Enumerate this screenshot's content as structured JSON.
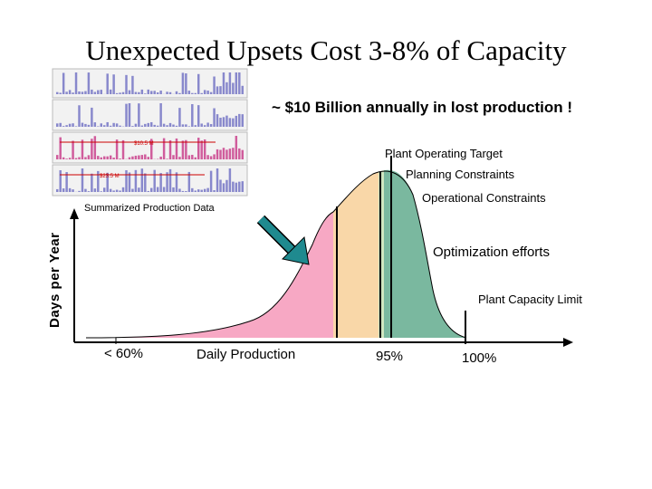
{
  "title": "Unexpected Upsets Cost 3-8% of Capacity",
  "headline": "~ $10 Billion annually in lost production !",
  "thumbnails_caption": "Summarized Production Data",
  "y_axis_label": "Days per Year",
  "annotations": {
    "plant_operating_target": "Plant Operating Target",
    "planning_constraints": "Planning Constraints",
    "operational_constraints": "Operational Constraints",
    "optimization_efforts": "Optimization efforts",
    "plant_capacity_limit": "Plant Capacity Limit"
  },
  "x_labels": {
    "lt60": "< 60%",
    "daily_production": "Daily Production",
    "p95": "95%",
    "p100": "100%"
  },
  "thumbnail_values": [
    "$10.5 M",
    "$23.5 M"
  ],
  "colors": {
    "pink": "#f7a8c4",
    "peach": "#f9d7a8",
    "green": "#7ab89f",
    "arrow": "#1f8a8f",
    "bar_blue": "#8888cc",
    "bar_pink": "#d05c9c"
  }
}
